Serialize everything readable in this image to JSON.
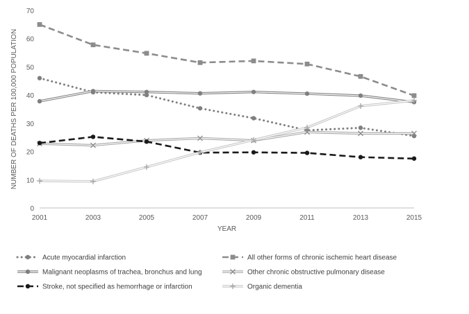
{
  "chart_data": {
    "type": "line",
    "title": "",
    "xlabel": "YEAR",
    "ylabel": "NUMBER OF DEATHS PER 100,000 POPULATION",
    "x": [
      2001,
      2003,
      2005,
      2007,
      2009,
      2011,
      2013,
      2015
    ],
    "xticks": [
      "2001",
      "2003",
      "2005",
      "2007",
      "2009",
      "2011",
      "2013",
      "2015"
    ],
    "ylim": [
      0,
      70
    ],
    "yticks": [
      "0",
      "10",
      "20",
      "30",
      "40",
      "50",
      "60",
      "70"
    ],
    "grid": false,
    "legend_position": "bottom",
    "series": [
      {
        "name": "Acute myocardial infarction",
        "values": [
          46,
          41,
          40,
          35.3,
          31.8,
          27.5,
          28.4,
          25.5
        ],
        "color": "#7f7f7f",
        "line": "dotted",
        "marker": "circle"
      },
      {
        "name": "All other forms of chronic ischemic heart disease",
        "values": [
          65,
          57.8,
          54.8,
          51.5,
          52.1,
          51,
          46.6,
          39.8
        ],
        "color": "#8c8c8c",
        "line": "dashed",
        "marker": "square"
      },
      {
        "name": "Malignant neoplasms of trachea, bronchus and lung",
        "values": [
          37.8,
          41.4,
          41.1,
          40.6,
          41.1,
          40.5,
          39.8,
          37.5
        ],
        "color": "#808080",
        "line": "double",
        "marker": "circle"
      },
      {
        "name": "Other chronic obstructive pulmonary disease",
        "values": [
          22.8,
          22.2,
          23.9,
          24.7,
          23.9,
          26.9,
          26.4,
          26.4
        ],
        "color": "#a6a6a6",
        "line": "double",
        "marker": "x"
      },
      {
        "name": "Stroke, not specified as hemorrhage or infarction",
        "values": [
          23,
          25.2,
          23.5,
          19.6,
          19.7,
          19.5,
          18,
          17.5
        ],
        "color": "#1a1a1a",
        "line": "dashed",
        "marker": "circle"
      },
      {
        "name": "Organic dementia",
        "values": [
          9.6,
          9.4,
          14.5,
          19.7,
          24.1,
          28.5,
          36.1,
          38.1
        ],
        "color": "#c8c8c8",
        "line": "double",
        "marker": "plus"
      }
    ]
  }
}
